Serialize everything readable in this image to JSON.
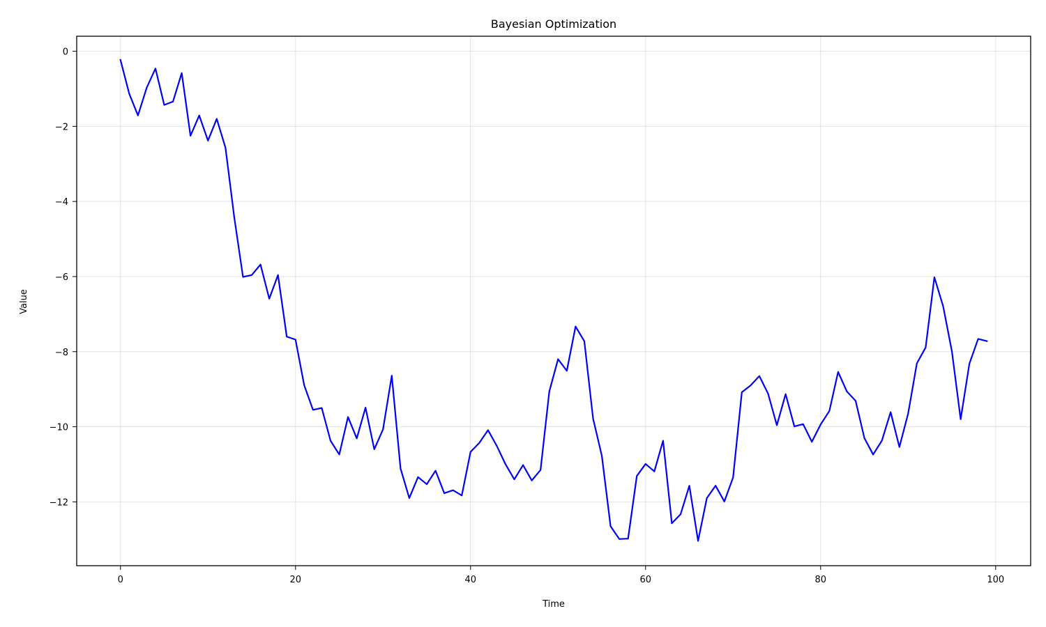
{
  "chart_data": {
    "type": "line",
    "title": "Bayesian Optimization",
    "xlabel": "Time",
    "ylabel": "Value",
    "xlim": [
      -5,
      104
    ],
    "ylim": [
      -13.7,
      0.4
    ],
    "xticks": [
      0,
      20,
      40,
      60,
      80,
      100
    ],
    "yticks": [
      0,
      -2,
      -4,
      -6,
      -8,
      -10,
      -12
    ],
    "xtick_labels": [
      "0",
      "20",
      "40",
      "60",
      "80",
      "100"
    ],
    "ytick_labels": [
      "0",
      "−2",
      "−4",
      "−6",
      "−8",
      "−10",
      "−12"
    ],
    "grid": true,
    "series": [
      {
        "color": "#0000ff",
        "x": [
          0,
          1,
          2,
          3,
          4,
          5,
          6,
          7,
          8,
          9,
          10,
          11,
          12,
          13,
          14,
          15,
          16,
          17,
          18,
          19,
          20,
          21,
          22,
          23,
          24,
          25,
          26,
          27,
          28,
          29,
          30,
          31,
          32,
          33,
          34,
          35,
          36,
          37,
          38,
          39,
          40,
          41,
          42,
          43,
          44,
          45,
          46,
          47,
          48,
          49,
          50,
          51,
          52,
          53,
          54,
          55,
          56,
          57,
          58,
          59,
          60,
          61,
          62,
          63,
          64,
          65,
          66,
          67,
          68,
          69,
          70,
          71,
          72,
          73,
          74,
          75,
          76,
          77,
          78,
          79,
          80,
          81,
          82,
          83,
          84,
          85,
          86,
          87,
          88,
          89,
          90,
          91,
          92,
          93,
          94,
          95,
          96,
          97,
          98,
          99
        ],
        "values": [
          -0.23,
          -1.13,
          -1.71,
          -0.97,
          -0.46,
          -1.43,
          -1.34,
          -0.58,
          -2.25,
          -1.71,
          -2.38,
          -1.8,
          -2.57,
          -4.42,
          -6.01,
          -5.96,
          -5.68,
          -6.59,
          -5.96,
          -7.6,
          -7.68,
          -8.9,
          -9.55,
          -9.5,
          -10.37,
          -10.74,
          -9.74,
          -10.31,
          -9.49,
          -10.6,
          -10.07,
          -8.64,
          -11.11,
          -11.9,
          -11.34,
          -11.53,
          -11.17,
          -11.77,
          -11.69,
          -11.83,
          -10.67,
          -10.43,
          -10.09,
          -10.51,
          -11.0,
          -11.4,
          -11.02,
          -11.43,
          -11.15,
          -9.06,
          -8.2,
          -8.51,
          -7.33,
          -7.72,
          -9.78,
          -10.77,
          -12.65,
          -12.99,
          -12.98,
          -11.31,
          -10.99,
          -11.19,
          -10.37,
          -12.57,
          -12.33,
          -11.57,
          -13.04,
          -11.9,
          -11.57,
          -11.99,
          -11.35,
          -9.08,
          -8.9,
          -8.65,
          -9.12,
          -9.96,
          -9.13,
          -9.99,
          -9.93,
          -10.4,
          -9.94,
          -9.58,
          -8.54,
          -9.06,
          -9.31,
          -10.3,
          -10.74,
          -10.37,
          -9.61,
          -10.54,
          -9.65,
          -8.31,
          -7.89,
          -6.02,
          -6.79,
          -7.99,
          -9.8,
          -8.32,
          -7.66,
          -7.72
        ]
      }
    ]
  }
}
